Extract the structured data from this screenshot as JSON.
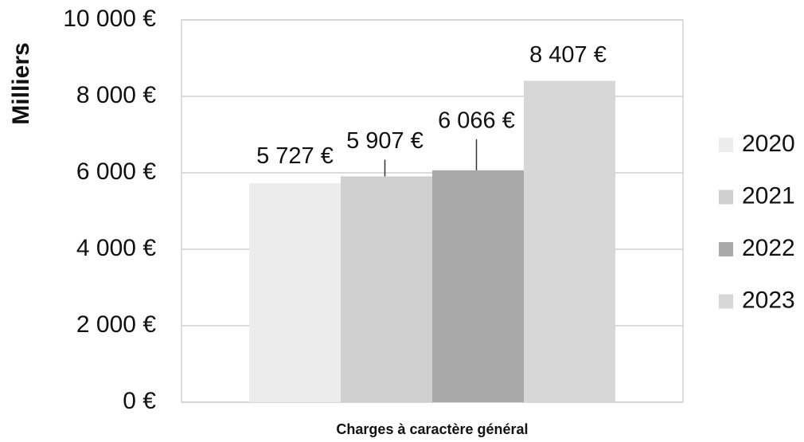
{
  "chart_data": {
    "type": "bar",
    "y_label": "Milliers",
    "categories": [
      "Charges à caractère général"
    ],
    "series": [
      {
        "name": "2020",
        "color": "#ececec",
        "values": [
          5727
        ],
        "value_labels": [
          "5 727 €"
        ]
      },
      {
        "name": "2021",
        "color": "#cfcfcf",
        "values": [
          5907
        ],
        "value_labels": [
          "5 907 €"
        ]
      },
      {
        "name": "2022",
        "color": "#a9a9a9",
        "values": [
          6066
        ],
        "value_labels": [
          "6 066 €"
        ]
      },
      {
        "name": "2023",
        "color": "#d7d7d7",
        "values": [
          8407
        ],
        "value_labels": [
          "8 407 €"
        ]
      }
    ],
    "ylim": [
      0,
      10000
    ],
    "yticks": [
      {
        "value": 0,
        "label": "0 €"
      },
      {
        "value": 2000,
        "label": "2 000 €"
      },
      {
        "value": 4000,
        "label": "4 000 €"
      },
      {
        "value": 6000,
        "label": "6 000 €"
      },
      {
        "value": 8000,
        "label": "8 000 €"
      },
      {
        "value": 10000,
        "label": "10 000 €"
      }
    ],
    "grid": true,
    "legend": "right"
  }
}
